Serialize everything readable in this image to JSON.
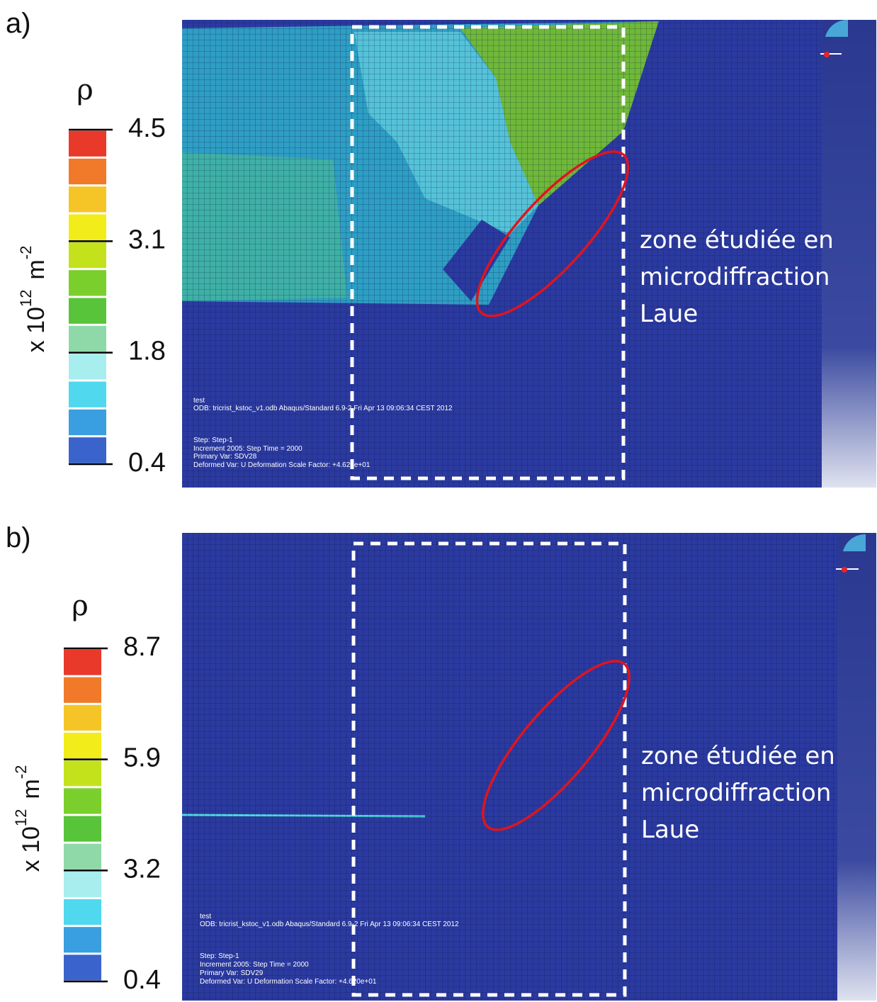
{
  "panels": [
    {
      "label": "a)",
      "colorbar": {
        "symbol": "ρ",
        "unit": {
          "base": "x 10",
          "exponent": "12",
          "unit": "m",
          "unit_exponent": "-2"
        },
        "ticks": [
          4.5,
          3.1,
          1.8,
          0.4
        ]
      },
      "annotation": [
        "zone étudiée en",
        "microdiffraction",
        "Laue"
      ],
      "software_info": [
        "test",
        "ODB: tricrist_kstoc_v1.odb    Abaqus/Standard 6.9-2    Fri Apr 13 09:06:34 CEST 2012",
        "Step: Step-1",
        "Increment    2005: Step Time =    2000",
        "Primary Var: SDV28",
        "Deformed Var: U   Deformation Scale Factor: +4.620e+01"
      ]
    },
    {
      "label": "b)",
      "colorbar": {
        "symbol": "ρ",
        "unit": {
          "base": "x 10",
          "exponent": "12",
          "unit": "m",
          "unit_exponent": "-2"
        },
        "ticks": [
          8.7,
          5.9,
          3.2,
          0.4
        ]
      },
      "annotation": [
        "zone étudiée en",
        "microdiffraction",
        "Laue"
      ],
      "software_info": [
        "test",
        "ODB: tricrist_kstoc_v1.odb    Abaqus/Standard 6.9-2    Fri Apr 13 09:06:34 CEST 2012",
        "Step: Step-1",
        "Increment    2005: Step Time =    2000",
        "Primary Var: SDV29",
        "Deformed Var: U   Deformation Scale Factor: +4.620e+01"
      ]
    }
  ]
}
